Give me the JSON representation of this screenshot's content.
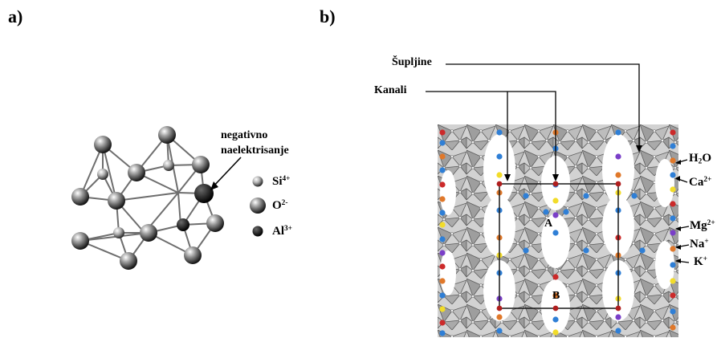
{
  "panel_a": {
    "label": "a)",
    "annotation_line1": "negativno",
    "annotation_line2": "naelektrisanje",
    "legend": [
      {
        "base": "Si",
        "sup": "4+"
      },
      {
        "base": "O",
        "sup": "2-"
      },
      {
        "base": "Al",
        "sup": "3+"
      }
    ]
  },
  "panel_b": {
    "label": "b)",
    "callout_cavities": "Šupljine",
    "callout_channels": "Kanali",
    "site_A": "A",
    "site_B": "B",
    "ions": {
      "water": {
        "base": "H",
        "sub": "2",
        "rest": "O"
      },
      "calcium": {
        "base": "Ca",
        "sup": "2+"
      },
      "magnesium": {
        "base": "Mg",
        "sup": "2+"
      },
      "sodium": {
        "base": "Na",
        "sup": "+"
      },
      "potassium": {
        "base": "K",
        "sup": "+"
      }
    }
  },
  "colors": {
    "oxygen_atom": "#9a9a9a",
    "tetrahedra": "#b9b9b9",
    "water": "#2f7fd6",
    "calcium": "#e0782a",
    "magnesium": "#cc2a2a",
    "sodium": "#f2dc2a",
    "potassium": "#7a3fc8"
  }
}
